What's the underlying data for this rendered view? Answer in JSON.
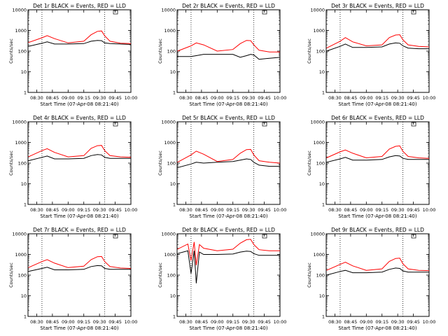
{
  "figure": {
    "colors": {
      "events": "#000000",
      "lld": "#ff0000",
      "axis": "#000000"
    },
    "x_tick_labels": [
      "08:30",
      "08:45",
      "09:00",
      "09:15",
      "09:30",
      "09:45",
      "10:00"
    ],
    "y_tick_labels": [
      "1",
      "10",
      "100",
      "1000",
      "10000"
    ],
    "ylabel": "Counts/sec",
    "xlabel": "Start Time (07-Apr-08 08:21:40)"
  },
  "chart_data": [
    {
      "type": "line",
      "title": "Det 1r BLACK = Events, RED = LLD",
      "xlabel": "Start Time (07-Apr-08 08:21:40)",
      "ylabel": "Counts/sec",
      "xlim": [
        "08:21:40",
        "10:00"
      ],
      "ylim": [
        1,
        10000
      ],
      "yscale": "log",
      "grid": false,
      "x": [
        "08:22",
        "08:35",
        "08:40",
        "08:47",
        "09:00",
        "09:15",
        "09:22",
        "09:28",
        "09:32",
        "09:35",
        "09:40",
        "09:50",
        "10:00"
      ],
      "series": [
        {
          "name": "Events",
          "values": [
            170,
            240,
            280,
            220,
            220,
            230,
            300,
            330,
            320,
            250,
            230,
            220,
            210
          ]
        },
        {
          "name": "LLD",
          "values": [
            260,
            440,
            560,
            400,
            250,
            300,
            620,
            900,
            950,
            550,
            300,
            240,
            230
          ]
        }
      ]
    },
    {
      "type": "line",
      "title": "Det 2r BLACK = Events, RED = LLD",
      "xlabel": "Start Time (07-Apr-08 08:21:40)",
      "ylabel": "Counts/sec",
      "xlim": [
        "08:21:40",
        "10:00"
      ],
      "ylim": [
        1,
        10000
      ],
      "yscale": "log",
      "grid": false,
      "x": [
        "08:22",
        "08:35",
        "08:40",
        "08:47",
        "09:00",
        "09:15",
        "09:22",
        "09:28",
        "09:32",
        "09:35",
        "09:40",
        "09:50",
        "10:00"
      ],
      "series": [
        {
          "name": "Events",
          "values": [
            55,
            55,
            60,
            70,
            70,
            70,
            50,
            60,
            70,
            65,
            40,
            45,
            50
          ]
        },
        {
          "name": "LLD",
          "values": [
            100,
            180,
            250,
            200,
            100,
            120,
            230,
            330,
            320,
            200,
            110,
            90,
            90
          ]
        }
      ]
    },
    {
      "type": "line",
      "title": "Det 3r BLACK = Events, RED = LLD",
      "xlabel": "Start Time (07-Apr-08 08:21:40)",
      "ylabel": "Counts/sec",
      "xlim": [
        "08:21:40",
        "10:00"
      ],
      "ylim": [
        1,
        10000
      ],
      "yscale": "log",
      "grid": false,
      "x": [
        "08:22",
        "08:35",
        "08:40",
        "08:47",
        "09:00",
        "09:15",
        "09:22",
        "09:28",
        "09:32",
        "09:35",
        "09:40",
        "09:50",
        "10:00"
      ],
      "series": [
        {
          "name": "Events",
          "values": [
            100,
            170,
            220,
            150,
            150,
            160,
            220,
            250,
            240,
            180,
            140,
            130,
            130
          ]
        },
        {
          "name": "LLD",
          "values": [
            140,
            300,
            450,
            280,
            180,
            200,
            450,
            600,
            620,
            350,
            200,
            170,
            160
          ]
        }
      ]
    },
    {
      "type": "line",
      "title": "Det 4r BLACK = Events, RED = LLD",
      "xlabel": "Start Time (07-Apr-08 08:21:40)",
      "ylabel": "Counts/sec",
      "xlim": [
        "08:21:40",
        "10:00"
      ],
      "ylim": [
        1,
        10000
      ],
      "yscale": "log",
      "grid": false,
      "x": [
        "08:22",
        "08:35",
        "08:40",
        "08:47",
        "09:00",
        "09:15",
        "09:22",
        "09:28",
        "09:32",
        "09:35",
        "09:40",
        "09:50",
        "10:00"
      ],
      "series": [
        {
          "name": "Events",
          "values": [
            130,
            190,
            220,
            160,
            160,
            170,
            230,
            260,
            250,
            190,
            170,
            170,
            170
          ]
        },
        {
          "name": "LLD",
          "values": [
            200,
            400,
            500,
            330,
            200,
            230,
            520,
            700,
            720,
            400,
            230,
            200,
            190
          ]
        }
      ]
    },
    {
      "type": "line",
      "title": "Det 5r BLACK = Events, RED = LLD",
      "xlabel": "Start Time (07-Apr-08 08:21:40)",
      "ylabel": "Counts/sec",
      "xlim": [
        "08:21:40",
        "10:00"
      ],
      "ylim": [
        1,
        10000
      ],
      "yscale": "log",
      "grid": false,
      "x": [
        "08:22",
        "08:35",
        "08:40",
        "08:47",
        "09:00",
        "09:15",
        "09:22",
        "09:28",
        "09:32",
        "09:35",
        "09:40",
        "09:50",
        "10:00"
      ],
      "series": [
        {
          "name": "Events",
          "values": [
            60,
            90,
            110,
            100,
            110,
            120,
            140,
            160,
            150,
            110,
            80,
            70,
            70
          ]
        },
        {
          "name": "LLD",
          "values": [
            110,
            250,
            380,
            270,
            120,
            150,
            300,
            450,
            460,
            250,
            130,
            110,
            100
          ]
        }
      ]
    },
    {
      "type": "line",
      "title": "Det 6r BLACK = Events, RED = LLD",
      "xlabel": "Start Time (07-Apr-08 08:21:40)",
      "ylabel": "Counts/sec",
      "xlim": [
        "08:21:40",
        "10:00"
      ],
      "ylim": [
        1,
        10000
      ],
      "yscale": "log",
      "grid": false,
      "x": [
        "08:22",
        "08:35",
        "08:40",
        "08:47",
        "09:00",
        "09:15",
        "09:22",
        "09:28",
        "09:32",
        "09:35",
        "09:40",
        "09:50",
        "10:00"
      ],
      "series": [
        {
          "name": "Events",
          "values": [
            110,
            160,
            190,
            140,
            140,
            150,
            200,
            230,
            220,
            170,
            150,
            150,
            150
          ]
        },
        {
          "name": "LLD",
          "values": [
            180,
            350,
            430,
            300,
            180,
            210,
            480,
            650,
            680,
            370,
            210,
            180,
            170
          ]
        }
      ]
    },
    {
      "type": "line",
      "title": "Det 7r BLACK = Events, RED = LLD",
      "xlabel": "Start Time (07-Apr-08 08:21:40)",
      "ylabel": "Counts/sec",
      "xlim": [
        "08:21:40",
        "10:00"
      ],
      "ylim": [
        1,
        10000
      ],
      "yscale": "log",
      "grid": false,
      "x": [
        "08:22",
        "08:35",
        "08:40",
        "08:47",
        "09:00",
        "09:15",
        "09:22",
        "09:28",
        "09:32",
        "09:35",
        "09:40",
        "09:50",
        "10:00"
      ],
      "series": [
        {
          "name": "Events",
          "values": [
            150,
            210,
            240,
            180,
            180,
            190,
            260,
            290,
            280,
            210,
            190,
            190,
            190
          ]
        },
        {
          "name": "LLD",
          "values": [
            230,
            450,
            560,
            380,
            230,
            270,
            560,
            780,
            800,
            450,
            260,
            220,
            210
          ]
        }
      ]
    },
    {
      "type": "line",
      "title": "Det 8r BLACK = Events, RED = LLD",
      "xlabel": "Start Time (07-Apr-08 08:21:40)",
      "ylabel": "Counts/sec",
      "xlim": [
        "08:21:40",
        "10:00"
      ],
      "ylim": [
        1,
        10000
      ],
      "yscale": "log",
      "grid": false,
      "x": [
        "08:22",
        "08:32",
        "08:35",
        "08:38",
        "08:40",
        "08:43",
        "08:47",
        "09:00",
        "09:15",
        "09:22",
        "09:28",
        "09:32",
        "09:35",
        "09:40",
        "09:50",
        "10:00"
      ],
      "series": [
        {
          "name": "Events",
          "values": [
            1100,
            1500,
            120,
            1500,
            40,
            1300,
            1000,
            1000,
            1050,
            1300,
            1450,
            1400,
            1100,
            900,
            900,
            900
          ]
        },
        {
          "name": "LLD",
          "values": [
            1800,
            3200,
            500,
            4000,
            300,
            3000,
            2000,
            1500,
            1800,
            3500,
            5200,
            5400,
            3000,
            1700,
            1500,
            1500
          ]
        }
      ]
    },
    {
      "type": "line",
      "title": "Det 9r BLACK = Events, RED = LLD",
      "xlabel": "Start Time (07-Apr-08 08:21:40)",
      "ylabel": "Counts/sec",
      "xlim": [
        "08:21:40",
        "10:00"
      ],
      "ylim": [
        1,
        10000
      ],
      "yscale": "log",
      "grid": false,
      "x": [
        "08:22",
        "08:35",
        "08:40",
        "08:47",
        "09:00",
        "09:15",
        "09:22",
        "09:28",
        "09:32",
        "09:35",
        "09:40",
        "09:50",
        "10:00"
      ],
      "series": [
        {
          "name": "Events",
          "values": [
            100,
            150,
            170,
            130,
            130,
            140,
            190,
            220,
            210,
            160,
            140,
            140,
            140
          ]
        },
        {
          "name": "LLD",
          "values": [
            170,
            330,
            420,
            280,
            170,
            200,
            460,
            640,
            660,
            350,
            200,
            170,
            165
          ]
        }
      ]
    }
  ]
}
